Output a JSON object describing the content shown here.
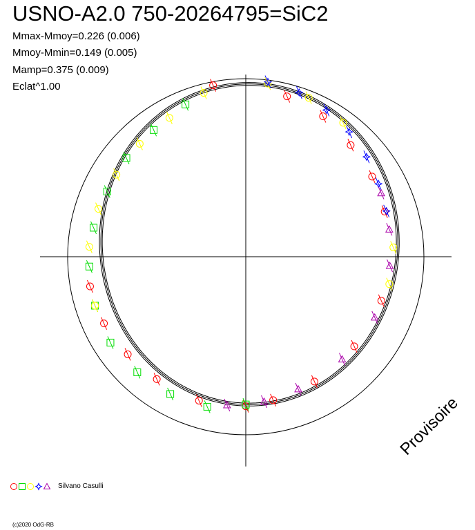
{
  "header": {
    "title": "USNO-A2.0 750-20264795=SiC2",
    "stats": [
      "Mmax-Mmoy=0.226 (0.006)",
      "Mmoy-Mmin=0.149 (0.005)",
      "Mamp=0.375 (0.009)",
      "Eclat^1.00"
    ]
  },
  "legend": {
    "author": "Silvano Casulli",
    "markers": [
      {
        "shape": "circle",
        "color": "#ff0000"
      },
      {
        "shape": "square",
        "color": "#00dd00"
      },
      {
        "shape": "circle",
        "color": "#ffff00"
      },
      {
        "shape": "star",
        "color": "#0000ff"
      },
      {
        "shape": "triangle",
        "color": "#aa00aa"
      }
    ]
  },
  "footer": {
    "copyright": "(c)2020 OdG-RB"
  },
  "watermark": "Provisoire",
  "chart_data": {
    "type": "scatter",
    "projection": "polar",
    "title": "USNO-A2.0 750-20264795=SiC2",
    "grid": true,
    "reference_circle": true,
    "legend_position": "bottom-left",
    "series": [
      {
        "marker": "circle",
        "color": "#ff0000",
        "phase": [
          0.04,
          0.08,
          0.12,
          0.16,
          0.2,
          0.3,
          0.36,
          0.42,
          0.47,
          0.5,
          0.55,
          0.6,
          0.64,
          0.68,
          0.72,
          0.97
        ],
        "r_rel": [
          0.93,
          0.9,
          0.86,
          0.84,
          0.82,
          0.8,
          0.79,
          0.8,
          0.82,
          0.84,
          0.85,
          0.85,
          0.86,
          0.88,
          0.89,
          0.98
        ]
      },
      {
        "marker": "square",
        "color": "#00dd00",
        "phase": [
          0.5,
          0.54,
          0.58,
          0.62,
          0.66,
          0.7,
          0.74,
          0.78,
          0.82,
          0.86,
          0.9,
          0.94
        ],
        "r_rel": [
          0.83,
          0.87,
          0.88,
          0.89,
          0.9,
          0.89,
          0.88,
          0.87,
          0.86,
          0.87,
          0.88,
          0.92
        ]
      },
      {
        "marker": "circle",
        "color": "#ffff00",
        "phase": [
          0.02,
          0.06,
          0.1,
          0.24,
          0.28,
          0.7,
          0.76,
          0.8,
          0.84,
          0.88,
          0.92,
          0.96
        ],
        "r_rel": [
          0.98,
          0.96,
          0.93,
          0.83,
          0.82,
          0.89,
          0.88,
          0.87,
          0.86,
          0.87,
          0.89,
          0.95
        ]
      },
      {
        "marker": "star",
        "color": "#0000ff",
        "phase": [
          0.02,
          0.05,
          0.08,
          0.11,
          0.14,
          0.17,
          0.2
        ],
        "r_rel": [
          0.99,
          0.97,
          0.94,
          0.91,
          0.88,
          0.85,
          0.83
        ]
      },
      {
        "marker": "triangle",
        "color": "#aa00aa",
        "phase": [
          0.18,
          0.22,
          0.26,
          0.32,
          0.38,
          0.44,
          0.48,
          0.52
        ],
        "r_rel": [
          0.84,
          0.82,
          0.81,
          0.8,
          0.79,
          0.8,
          0.82,
          0.84
        ]
      }
    ]
  }
}
